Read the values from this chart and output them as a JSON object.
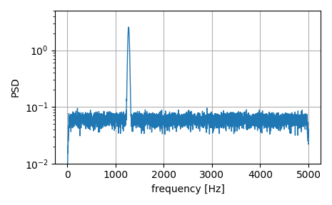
{
  "title": "",
  "xlabel": "frequency [Hz]",
  "ylabel": "PSD",
  "xlim": [
    -250,
    5250
  ],
  "ylim": [
    0.01,
    5.0
  ],
  "line_color": "#1f77b4",
  "line_width": 1.0,
  "noise_floor": 0.06,
  "peak_freq": 1270,
  "peak_height": 2.5,
  "sample_rate": 10000,
  "n_points": 5001,
  "x_ticks": [
    0,
    1000,
    2000,
    3000,
    4000,
    5000
  ],
  "grid_color": "#b0b0b0",
  "grid_linewidth": 0.8
}
